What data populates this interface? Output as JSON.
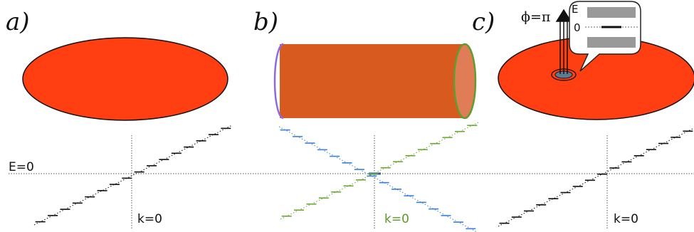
{
  "panels": [
    {
      "label": "a)"
    },
    {
      "label": "b)"
    },
    {
      "label": "c)"
    }
  ],
  "energy_label": "E=0",
  "k_labels": [
    {
      "text": "k=0",
      "color": "#111111"
    },
    {
      "text": "k=0",
      "color": "#5a9a2a"
    },
    {
      "text": "k=0",
      "color": "#111111"
    }
  ],
  "flux_label": "ϕ=π",
  "inset": {
    "energy_axis": "E",
    "zero_label": "0"
  },
  "colors": {
    "disk_fill": "#ff3f12",
    "cylinder_fill": "#d85a1f",
    "cylinder_end": "#e07c56",
    "edge_left": "#8a6be0",
    "edge_right": "#5f9e2d",
    "blue_levels": "#3a80d9",
    "green_levels": "#6aa832",
    "black_levels": "#111111",
    "hole_fill": "#5b7d92",
    "inset_bands": "#999999"
  }
}
